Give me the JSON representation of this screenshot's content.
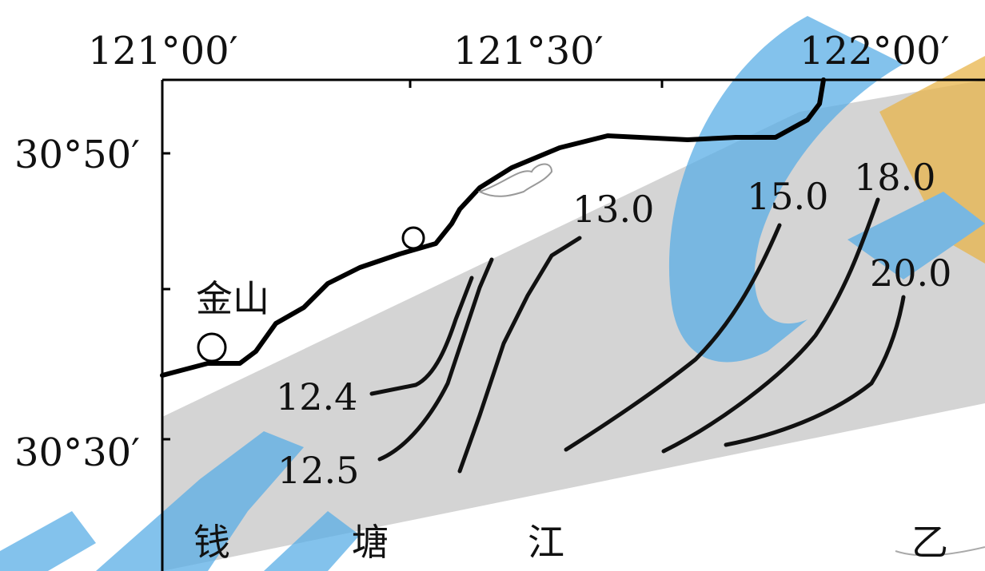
{
  "map": {
    "longitude_labels": [
      "121°00′",
      "121°30′",
      "122°00′"
    ],
    "latitude_labels": [
      "30°50′",
      "30°30′"
    ],
    "places": {
      "jinshan": "金山"
    },
    "river": [
      "钱",
      "塘",
      "江"
    ],
    "section": "乙",
    "contours": [
      "12.4",
      "12.5",
      "13.0",
      "15.0",
      "18.0",
      "20.0"
    ],
    "colors": {
      "shaded_zone": "#d4d4d4",
      "coastline": "#000000",
      "watermark_blue": "#5aaee6",
      "watermark_orange": "#e8b44a"
    }
  }
}
